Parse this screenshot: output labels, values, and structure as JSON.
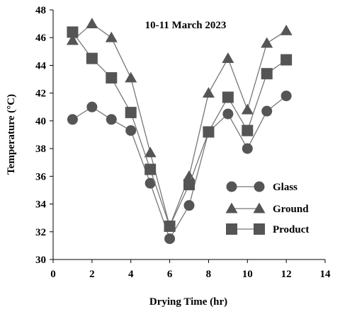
{
  "chart_data": {
    "type": "line",
    "title": "10-11 March 2023",
    "xlabel": "Drying Time (hr)",
    "ylabel": "Temperature (°C)",
    "xlim": [
      0,
      14
    ],
    "ylim": [
      30,
      48
    ],
    "x_ticks": [
      "0",
      "2",
      "4",
      "6",
      "8",
      "10",
      "12",
      "14"
    ],
    "y_ticks": [
      "30",
      "32",
      "34",
      "36",
      "38",
      "40",
      "42",
      "44",
      "46",
      "48"
    ],
    "grid": false,
    "legend_position": "lower-right",
    "x": [
      1,
      2,
      3,
      4,
      5,
      6,
      7,
      8,
      9,
      10,
      11,
      12
    ],
    "series": [
      {
        "name": "Glass",
        "marker": "circle",
        "color": "#555555",
        "values": [
          40.1,
          41.0,
          40.1,
          39.3,
          35.5,
          31.5,
          33.9,
          39.2,
          40.5,
          38.0,
          40.7,
          41.8
        ]
      },
      {
        "name": "Ground",
        "marker": "triangle",
        "color": "#555555",
        "values": [
          45.8,
          47.0,
          46.0,
          43.1,
          37.7,
          32.4,
          36.0,
          42.0,
          44.5,
          40.8,
          45.6,
          46.5
        ]
      },
      {
        "name": "Product",
        "marker": "square",
        "color": "#555555",
        "values": [
          46.4,
          44.5,
          43.1,
          40.6,
          36.5,
          32.4,
          35.4,
          39.2,
          41.7,
          39.3,
          43.4,
          44.4
        ]
      }
    ]
  }
}
